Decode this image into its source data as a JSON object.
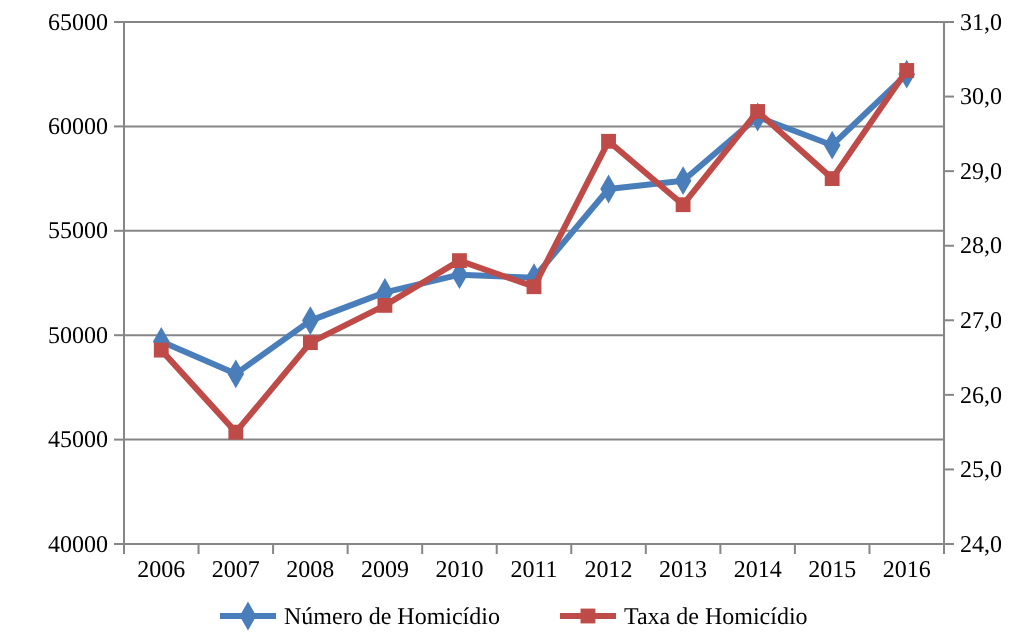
{
  "chart_data": {
    "type": "line",
    "categories": [
      "2006",
      "2007",
      "2008",
      "2009",
      "2010",
      "2011",
      "2012",
      "2013",
      "2014",
      "2015",
      "2016"
    ],
    "series": [
      {
        "name": "Número de Homicídio",
        "color": "#4a7ebb",
        "marker": "diamond",
        "values": [
          49700,
          48150,
          50700,
          52050,
          52900,
          52750,
          57000,
          57400,
          60450,
          59100,
          62500
        ]
      },
      {
        "name": "Taxa de Homicídio",
        "color": "#be4b48",
        "marker": "square",
        "axis": "y2",
        "values": [
          26.6,
          25.5,
          26.7,
          27.2,
          27.8,
          27.45,
          29.4,
          28.55,
          29.8,
          28.9,
          30.35
        ]
      }
    ],
    "ylim": [
      40000,
      65000
    ],
    "yticks": [
      40000,
      45000,
      50000,
      55000,
      60000,
      65000
    ],
    "y2lim": [
      24,
      31
    ],
    "y2ticks": [
      {
        "value": 24,
        "label": "24,0"
      },
      {
        "value": 25,
        "label": "25,0"
      },
      {
        "value": 26,
        "label": "26,0"
      },
      {
        "value": 27,
        "label": "27,0"
      },
      {
        "value": 28,
        "label": "28,0"
      },
      {
        "value": 29,
        "label": "29,0"
      },
      {
        "value": 30,
        "label": "30,0"
      },
      {
        "value": 31,
        "label": "31,0"
      }
    ],
    "grid": "y",
    "legend": "bottom"
  }
}
